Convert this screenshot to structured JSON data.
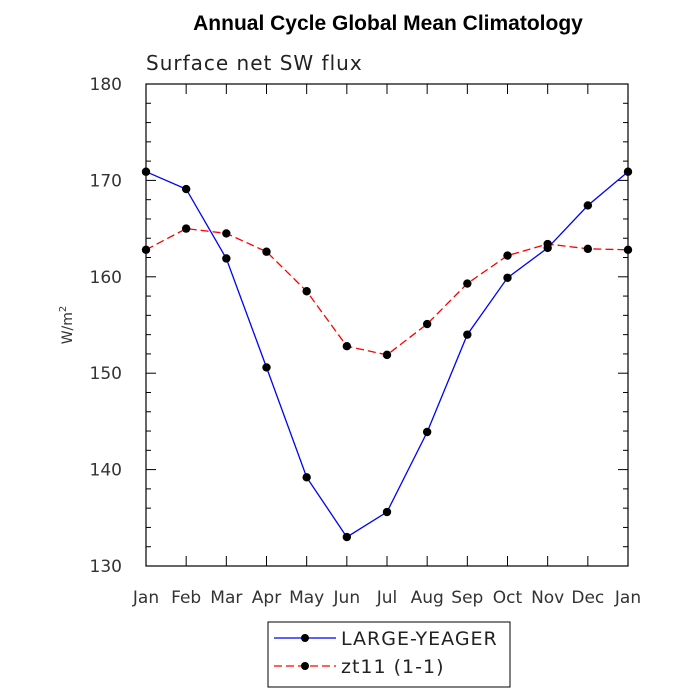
{
  "chart_data": {
    "type": "line",
    "title": "Annual Cycle Global Mean Climatology",
    "subtitle": "Surface net SW flux",
    "ylabel": "W/m2",
    "ylabel_base": "W/m",
    "ylabel_sup": "2",
    "xlabel": "",
    "categories": [
      "Jan",
      "Feb",
      "Mar",
      "Apr",
      "May",
      "Jun",
      "Jul",
      "Aug",
      "Sep",
      "Oct",
      "Nov",
      "Dec",
      "Jan"
    ],
    "ylim": [
      130,
      180
    ],
    "yticks": [
      130,
      140,
      150,
      160,
      170,
      180
    ],
    "grid": false,
    "legend_position": "bottom",
    "series": [
      {
        "name": "LARGE-YEAGER",
        "color": "#0000ff",
        "dash": "solid",
        "marker": "filled-circle",
        "values": [
          170.9,
          169.1,
          161.9,
          150.6,
          139.2,
          133.0,
          135.6,
          143.9,
          154.0,
          159.9,
          163.0,
          167.4,
          170.9
        ]
      },
      {
        "name": "zt11 (1-1)",
        "color": "#ff0000",
        "dash": "dashed",
        "marker": "filled-circle",
        "values": [
          162.8,
          165.0,
          164.5,
          162.6,
          158.5,
          152.8,
          151.9,
          155.1,
          159.3,
          162.2,
          163.4,
          162.9,
          162.8
        ]
      }
    ]
  }
}
